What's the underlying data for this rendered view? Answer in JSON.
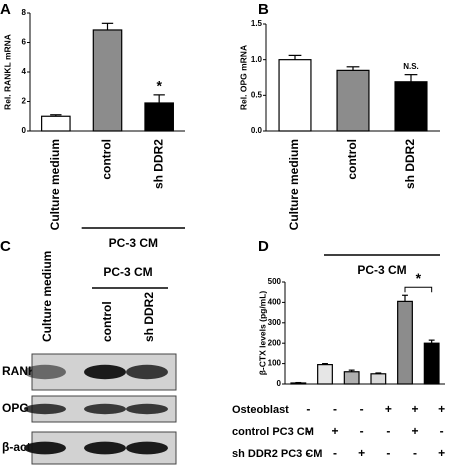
{
  "chart_data": [
    {
      "type": "bar",
      "panel": "A",
      "ylabel": "Rel. RANKL mRNA",
      "categories": [
        "Culture medium",
        "control",
        "sh DDR2"
      ],
      "values": [
        1.0,
        6.85,
        1.9
      ],
      "errors": [
        0.1,
        0.45,
        0.55
      ],
      "colors": [
        "#ffffff",
        "#8c8c8c",
        "#000000"
      ],
      "ylim": [
        0,
        8
      ],
      "yticks": [
        0,
        2,
        4,
        6,
        8
      ],
      "group": {
        "label": "PC-3 CM",
        "from": 1,
        "to": 2
      },
      "annotations": [
        {
          "text": "*",
          "categories": [
            2
          ]
        }
      ]
    },
    {
      "type": "bar",
      "panel": "B",
      "ylabel": "Rel. OPG mRNA",
      "categories": [
        "Culture medium",
        "control",
        "sh DDR2"
      ],
      "values": [
        1.0,
        0.85,
        0.69
      ],
      "errors": [
        0.06,
        0.05,
        0.1
      ],
      "colors": [
        "#ffffff",
        "#8c8c8c",
        "#000000"
      ],
      "ylim": [
        0,
        1.5
      ],
      "yticks": [
        {
          "value": 0,
          "label": "0.0"
        },
        0.5,
        {
          "value": 1,
          "label": "1.0"
        },
        1.5
      ],
      "group": {
        "label": "PC-3 CM",
        "from": 1,
        "to": 2
      },
      "annotations": [
        {
          "text": "N.S.",
          "categories": [
            2
          ]
        }
      ]
    },
    {
      "type": "bar",
      "panel": "D",
      "ylabel": "β-CTX levels (pg/mL)",
      "categories": [
        null,
        null,
        null,
        null,
        null,
        null
      ],
      "values": [
        5,
        95,
        60,
        50,
        405,
        200
      ],
      "errors": [
        2,
        5,
        8,
        4,
        30,
        15
      ],
      "colors": [
        "#ffffff",
        "#e6e6e6",
        "#b0b0b0",
        "#d9d9d9",
        "#8c8c8c",
        "#000000"
      ],
      "ylim": [
        0,
        500
      ],
      "yticks": [
        0,
        100,
        200,
        300,
        400,
        500
      ],
      "conditions": [
        {
          "label": "Osteoblast",
          "values": [
            "-",
            "-",
            "-",
            "+",
            "+",
            "+"
          ]
        },
        {
          "label": "control PC3 CM",
          "values": [
            "-",
            "+",
            "-",
            "-",
            "+",
            "-"
          ]
        },
        {
          "label": "sh DDR2 PC3 CM",
          "values": [
            "-",
            "-",
            "+",
            "-",
            "-",
            "+"
          ]
        }
      ],
      "annotations": [
        {
          "text": "*",
          "categories": [
            4,
            5
          ]
        }
      ]
    }
  ],
  "blot": {
    "panel": "C",
    "lanes": [
      "Culture medium",
      "control",
      "sh DDR2"
    ],
    "group": {
      "label": "PC-3 CM",
      "from": 1,
      "to": 2
    },
    "rows": [
      "RANKL",
      "OPG",
      "β-actin"
    ]
  }
}
